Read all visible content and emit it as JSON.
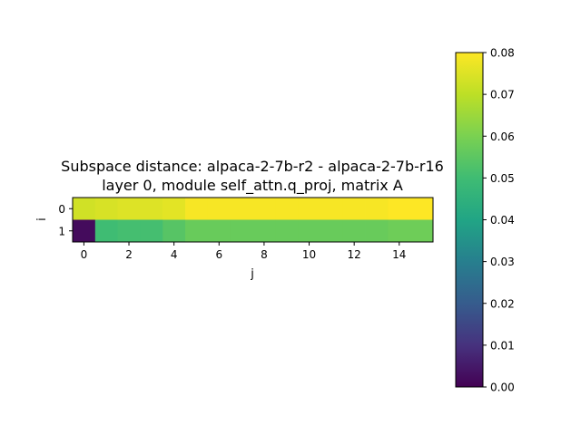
{
  "chart_data": {
    "type": "heatmap",
    "title_line1": "Subspace distance: alpaca-2-7b-r2 - alpaca-2-7b-r16",
    "title_line2": "layer 0, module self_attn.q_proj, matrix A",
    "xlabel": "j",
    "ylabel": "i",
    "x": [
      0,
      1,
      2,
      3,
      4,
      5,
      6,
      7,
      8,
      9,
      10,
      11,
      12,
      13,
      14,
      15
    ],
    "y": [
      0,
      1
    ],
    "x_ticks": [
      0,
      2,
      4,
      6,
      8,
      10,
      12,
      14
    ],
    "y_ticks": [
      0,
      1
    ],
    "values": [
      [
        0.073,
        0.074,
        0.075,
        0.075,
        0.076,
        0.079,
        0.079,
        0.079,
        0.079,
        0.079,
        0.079,
        0.079,
        0.079,
        0.079,
        0.08,
        0.08
      ],
      [
        0.002,
        0.05,
        0.051,
        0.051,
        0.054,
        0.057,
        0.057,
        0.057,
        0.057,
        0.057,
        0.057,
        0.057,
        0.057,
        0.057,
        0.058,
        0.058
      ]
    ],
    "colormap": "viridis",
    "colorbar": {
      "vmin": 0.0,
      "vmax": 0.08,
      "ticks": [
        "0.00",
        "0.01",
        "0.02",
        "0.03",
        "0.04",
        "0.05",
        "0.06",
        "0.07",
        "0.08"
      ]
    }
  }
}
